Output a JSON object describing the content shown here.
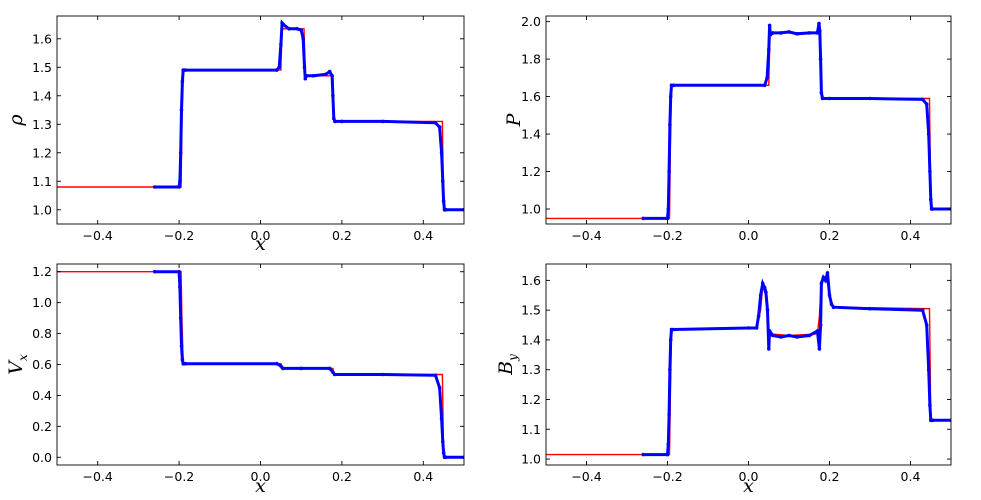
{
  "chart_data": [
    {
      "type": "line",
      "id": "rho",
      "ylabel": "ρ",
      "ylabel_sub": "",
      "xlabel": "x",
      "xlim": [
        -0.5,
        0.5
      ],
      "ylim": [
        0.95,
        1.68
      ],
      "xticks": [
        -0.4,
        -0.2,
        0.0,
        0.2,
        0.4
      ],
      "xtick_labels": [
        "−0.4",
        "−0.2",
        "0.0",
        "0.2",
        "0.4"
      ],
      "yticks": [
        1.0,
        1.1,
        1.2,
        1.3,
        1.4,
        1.5,
        1.6
      ],
      "ytick_labels": [
        "1.0",
        "1.1",
        "1.2",
        "1.3",
        "1.4",
        "1.5",
        "1.6"
      ],
      "series": [
        {
          "role": "reference",
          "color": "#ff0000",
          "style": "line",
          "x": [
            -0.5,
            -0.195,
            -0.193,
            -0.19,
            0.05,
            0.053,
            0.107,
            0.11,
            0.178,
            0.18,
            0.447,
            0.45,
            0.5
          ],
          "y": [
            1.08,
            1.08,
            1.3,
            1.49,
            1.49,
            1.635,
            1.635,
            1.47,
            1.47,
            1.31,
            1.31,
            1.0,
            1.0
          ]
        },
        {
          "role": "numerical",
          "color": "#0000ff",
          "style": "dots",
          "x": [
            -0.26,
            -0.2,
            -0.198,
            -0.196,
            -0.194,
            -0.192,
            -0.19,
            -0.185,
            0.04,
            0.046,
            0.05,
            0.053,
            0.056,
            0.07,
            0.09,
            0.1,
            0.105,
            0.108,
            0.11,
            0.113,
            0.13,
            0.16,
            0.17,
            0.176,
            0.178,
            0.18,
            0.183,
            0.2,
            0.3,
            0.43,
            0.44,
            0.445,
            0.448,
            0.45,
            0.452,
            0.455,
            0.5
          ],
          "y": [
            1.08,
            1.08,
            1.1,
            1.2,
            1.35,
            1.45,
            1.49,
            1.49,
            1.49,
            1.5,
            1.58,
            1.655,
            1.65,
            1.635,
            1.635,
            1.63,
            1.6,
            1.5,
            1.46,
            1.47,
            1.47,
            1.475,
            1.485,
            1.47,
            1.4,
            1.32,
            1.31,
            1.31,
            1.31,
            1.305,
            1.29,
            1.2,
            1.1,
            1.03,
            1.0,
            1.0,
            1.0
          ]
        }
      ]
    },
    {
      "type": "line",
      "id": "pressure",
      "ylabel": "P",
      "ylabel_sub": "",
      "xlabel": "",
      "xlim": [
        -0.5,
        0.5
      ],
      "ylim": [
        0.92,
        2.03
      ],
      "xticks": [
        -0.4,
        -0.2,
        0.0,
        0.2,
        0.4
      ],
      "xtick_labels": [
        "−0.4",
        "−0.2",
        "0.0",
        "0.2",
        "0.4"
      ],
      "yticks": [
        1.0,
        1.2,
        1.4,
        1.6,
        1.8,
        2.0
      ],
      "ytick_labels": [
        "1.0",
        "1.2",
        "1.4",
        "1.6",
        "1.8",
        "2.0"
      ],
      "series": [
        {
          "role": "reference",
          "color": "#ff0000",
          "style": "line",
          "x": [
            -0.5,
            -0.195,
            -0.193,
            -0.19,
            0.05,
            0.053,
            0.178,
            0.18,
            0.447,
            0.45,
            0.5
          ],
          "y": [
            0.95,
            0.95,
            1.3,
            1.66,
            1.66,
            1.94,
            1.94,
            1.59,
            1.59,
            1.0,
            1.0
          ]
        },
        {
          "role": "numerical",
          "color": "#0000ff",
          "style": "dots",
          "x": [
            -0.26,
            -0.2,
            -0.198,
            -0.196,
            -0.194,
            -0.192,
            -0.19,
            -0.185,
            0.04,
            0.046,
            0.05,
            0.052,
            0.054,
            0.06,
            0.08,
            0.1,
            0.12,
            0.15,
            0.17,
            0.174,
            0.176,
            0.178,
            0.18,
            0.183,
            0.2,
            0.3,
            0.43,
            0.44,
            0.445,
            0.448,
            0.45,
            0.452,
            0.455,
            0.5
          ],
          "y": [
            0.95,
            0.95,
            1.0,
            1.2,
            1.45,
            1.6,
            1.66,
            1.66,
            1.66,
            1.7,
            1.85,
            1.98,
            1.93,
            1.94,
            1.94,
            1.945,
            1.935,
            1.94,
            1.94,
            1.99,
            1.95,
            1.8,
            1.62,
            1.59,
            1.59,
            1.59,
            1.585,
            1.56,
            1.4,
            1.2,
            1.05,
            1.0,
            1.0,
            1.0
          ]
        }
      ]
    },
    {
      "type": "line",
      "id": "vx",
      "ylabel": "V",
      "ylabel_sub": "x",
      "xlabel": "x",
      "xlim": [
        -0.5,
        0.5
      ],
      "ylim": [
        -0.05,
        1.25
      ],
      "xticks": [
        -0.4,
        -0.2,
        0.0,
        0.2,
        0.4
      ],
      "xtick_labels": [
        "−0.4",
        "−0.2",
        "0.0",
        "0.2",
        "0.4"
      ],
      "yticks": [
        0.0,
        0.2,
        0.4,
        0.6,
        0.8,
        1.0,
        1.2
      ],
      "ytick_labels": [
        "0.0",
        "0.2",
        "0.4",
        "0.6",
        "0.8",
        "1.0",
        "1.2"
      ],
      "series": [
        {
          "role": "reference",
          "color": "#ff0000",
          "style": "line",
          "x": [
            -0.5,
            -0.195,
            -0.193,
            -0.19,
            0.05,
            0.051,
            0.178,
            0.18,
            0.447,
            0.45,
            0.5
          ],
          "y": [
            1.2,
            1.2,
            0.9,
            0.605,
            0.605,
            0.575,
            0.575,
            0.535,
            0.535,
            0.0,
            0.0
          ]
        },
        {
          "role": "numerical",
          "color": "#0000ff",
          "style": "dots",
          "x": [
            -0.26,
            -0.2,
            -0.198,
            -0.196,
            -0.194,
            -0.192,
            -0.19,
            -0.185,
            0.04,
            0.05,
            0.055,
            0.1,
            0.17,
            0.178,
            0.182,
            0.3,
            0.43,
            0.44,
            0.445,
            0.448,
            0.45,
            0.452,
            0.455,
            0.5
          ],
          "y": [
            1.2,
            1.2,
            1.1,
            0.9,
            0.72,
            0.63,
            0.605,
            0.605,
            0.605,
            0.59,
            0.575,
            0.575,
            0.575,
            0.55,
            0.535,
            0.535,
            0.53,
            0.45,
            0.25,
            0.1,
            0.03,
            0.0,
            0.0,
            0.0
          ]
        }
      ]
    },
    {
      "type": "line",
      "id": "by",
      "ylabel": "B",
      "ylabel_sub": "y",
      "xlabel": "x",
      "xlim": [
        -0.5,
        0.5
      ],
      "ylim": [
        0.98,
        1.655
      ],
      "xticks": [
        -0.4,
        -0.2,
        0.0,
        0.2,
        0.4
      ],
      "xtick_labels": [
        "−0.4",
        "−0.2",
        "0.0",
        "0.2",
        "0.4"
      ],
      "yticks": [
        1.0,
        1.1,
        1.2,
        1.3,
        1.4,
        1.5,
        1.6
      ],
      "ytick_labels": [
        "1.0",
        "1.1",
        "1.2",
        "1.3",
        "1.4",
        "1.5",
        "1.6"
      ],
      "series": [
        {
          "role": "reference",
          "color": "#ff0000",
          "style": "line",
          "x": [
            -0.5,
            -0.195,
            -0.193,
            -0.19,
            0.02,
            0.03,
            0.035,
            0.04,
            0.045,
            0.05,
            0.055,
            0.1,
            0.17,
            0.175,
            0.18,
            0.19,
            0.195,
            0.2,
            0.21,
            0.447,
            0.45,
            0.5
          ],
          "y": [
            1.015,
            1.015,
            1.2,
            1.435,
            1.44,
            1.5,
            1.58,
            1.56,
            1.55,
            1.43,
            1.42,
            1.415,
            1.42,
            1.48,
            1.6,
            1.61,
            1.625,
            1.55,
            1.51,
            1.505,
            1.13,
            1.13
          ]
        },
        {
          "role": "numerical",
          "color": "#0000ff",
          "style": "dots",
          "x": [
            -0.26,
            -0.2,
            -0.198,
            -0.196,
            -0.194,
            -0.192,
            -0.19,
            -0.185,
            0.0,
            0.02,
            0.025,
            0.03,
            0.035,
            0.04,
            0.043,
            0.047,
            0.05,
            0.052,
            0.06,
            0.08,
            0.1,
            0.12,
            0.15,
            0.17,
            0.175,
            0.178,
            0.18,
            0.185,
            0.19,
            0.195,
            0.2,
            0.205,
            0.21,
            0.3,
            0.43,
            0.44,
            0.445,
            0.448,
            0.45,
            0.452,
            0.455,
            0.5
          ],
          "y": [
            1.015,
            1.015,
            1.05,
            1.15,
            1.3,
            1.4,
            1.435,
            1.435,
            1.44,
            1.44,
            1.48,
            1.55,
            1.59,
            1.575,
            1.56,
            1.5,
            1.37,
            1.43,
            1.415,
            1.41,
            1.415,
            1.41,
            1.415,
            1.43,
            1.37,
            1.45,
            1.59,
            1.61,
            1.6,
            1.625,
            1.55,
            1.52,
            1.51,
            1.505,
            1.5,
            1.45,
            1.3,
            1.18,
            1.13,
            1.13,
            1.13,
            1.13
          ]
        }
      ]
    }
  ]
}
